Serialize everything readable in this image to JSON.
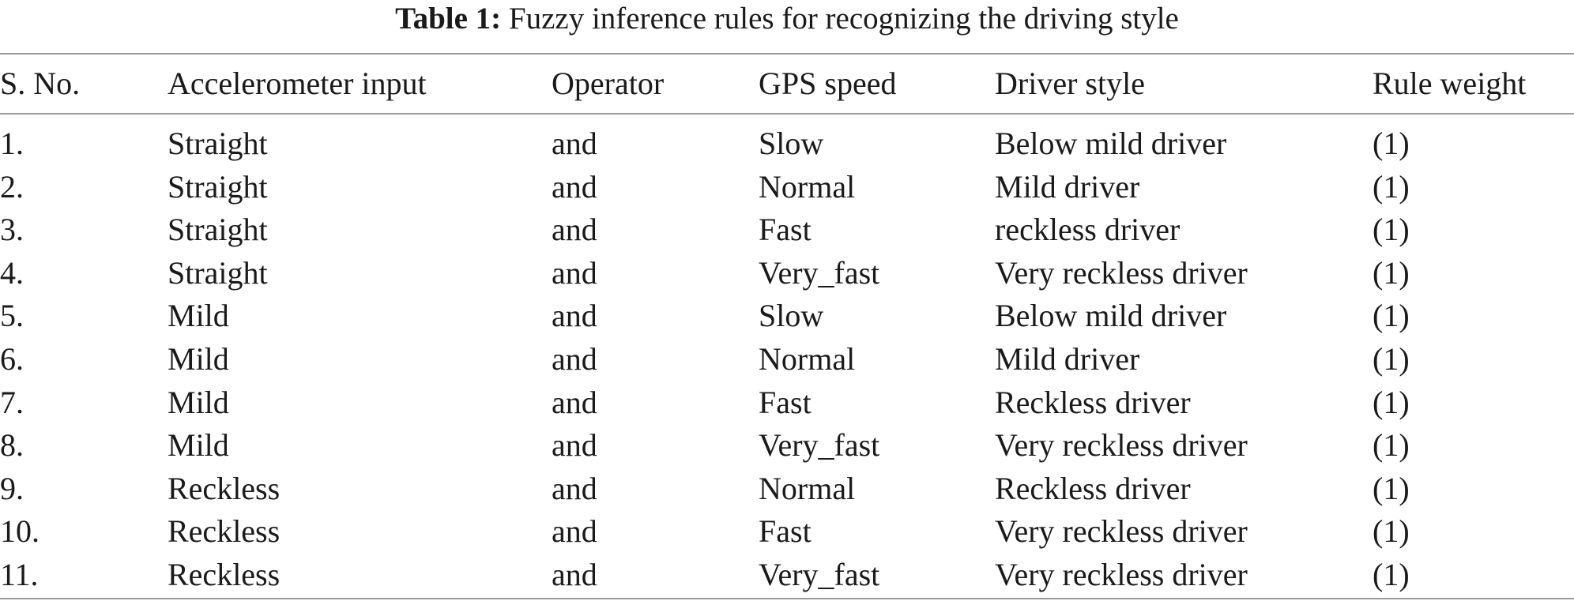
{
  "caption": {
    "label": "Table 1:",
    "text": "Fuzzy inference rules for recognizing the driving style"
  },
  "table": {
    "headers": [
      "S. No.",
      "Accelerometer input",
      "Operator",
      "GPS speed",
      "Driver style",
      "Rule weight"
    ],
    "rows": [
      [
        "1.",
        "Straight",
        "and",
        "Slow",
        "Below mild driver",
        "(1)"
      ],
      [
        "2.",
        "Straight",
        "and",
        "Normal",
        "Mild driver",
        "(1)"
      ],
      [
        "3.",
        "Straight",
        "and",
        "Fast",
        "reckless driver",
        "(1)"
      ],
      [
        "4.",
        "Straight",
        "and",
        "Very_fast",
        "Very reckless driver",
        "(1)"
      ],
      [
        "5.",
        "Mild",
        "and",
        "Slow",
        "Below mild driver",
        "(1)"
      ],
      [
        "6.",
        "Mild",
        "and",
        "Normal",
        "Mild driver",
        "(1)"
      ],
      [
        "7.",
        "Mild",
        "and",
        "Fast",
        "Reckless driver",
        "(1)"
      ],
      [
        "8.",
        "Mild",
        "and",
        "Very_fast",
        "Very reckless driver",
        "(1)"
      ],
      [
        "9.",
        "Reckless",
        "and",
        "Normal",
        "Reckless driver",
        "(1)"
      ],
      [
        "10.",
        "Reckless",
        "and",
        "Fast",
        "Very reckless driver",
        "(1)"
      ],
      [
        "11.",
        "Reckless",
        "and",
        "Very_fast",
        "Very reckless driver",
        "(1)"
      ]
    ]
  }
}
